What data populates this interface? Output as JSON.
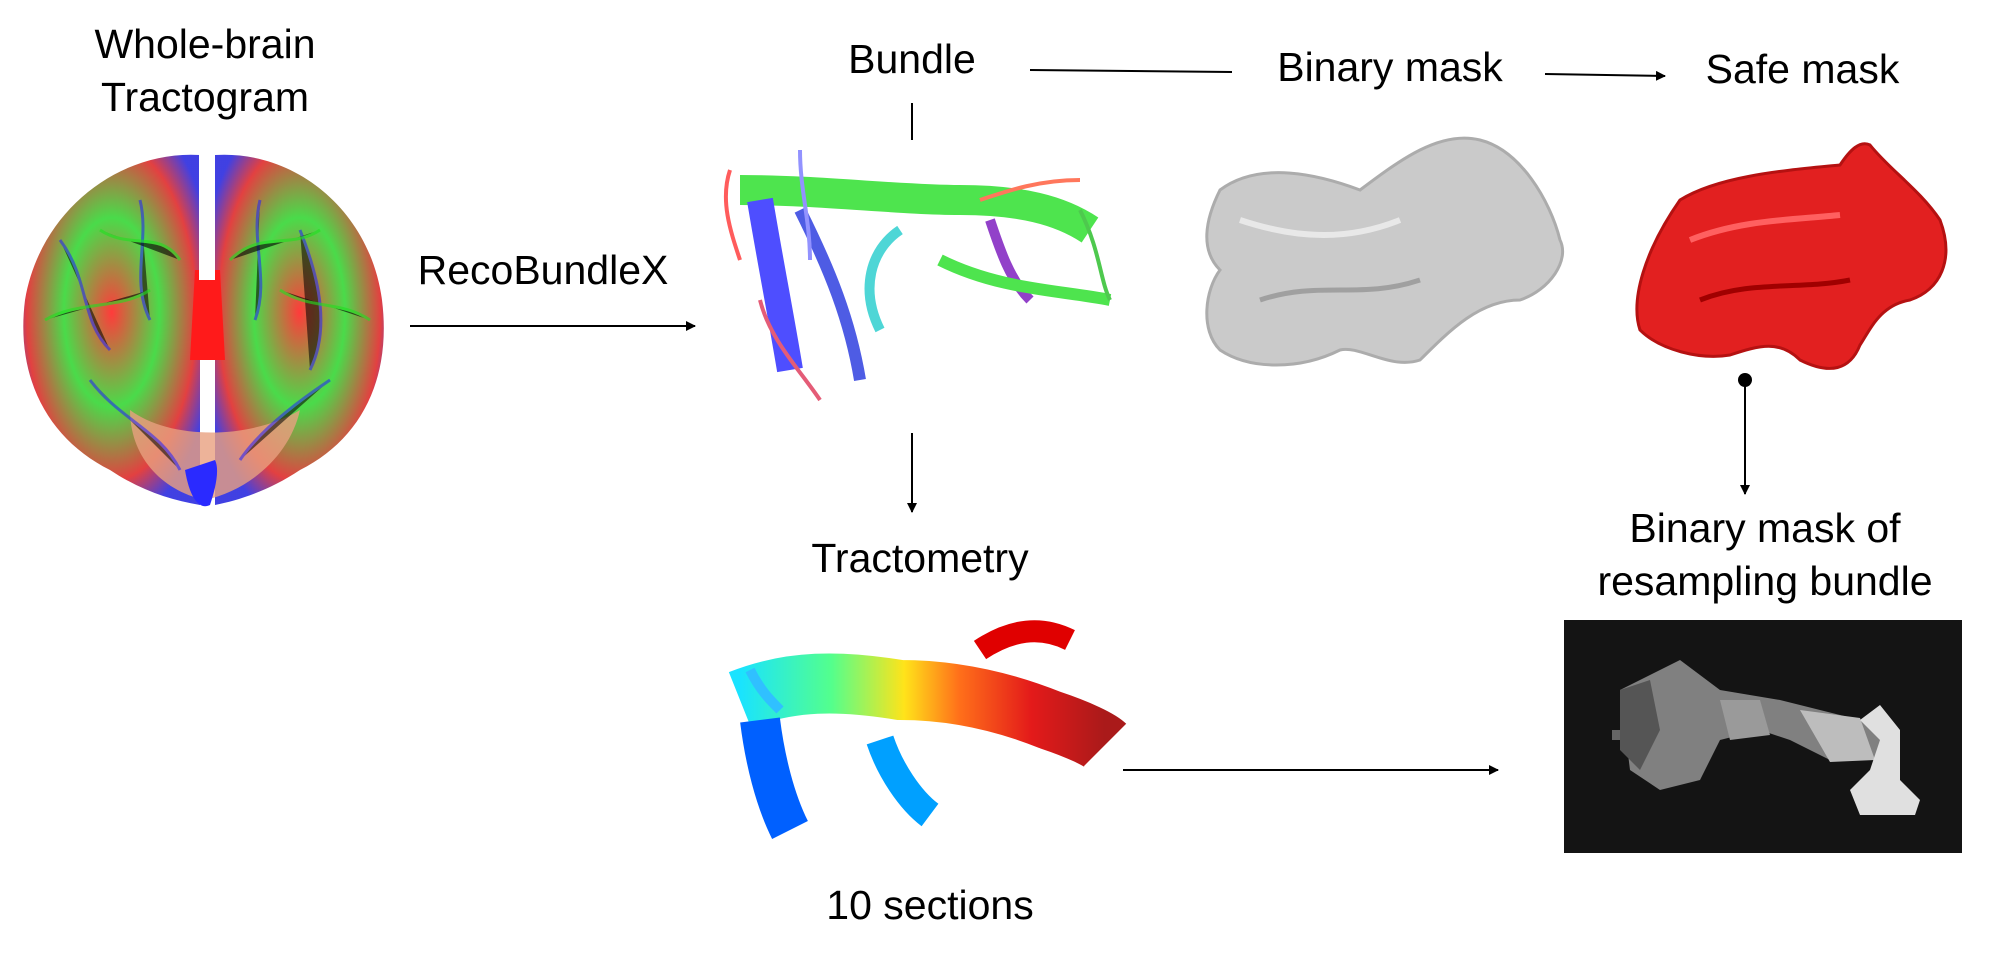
{
  "labels": {
    "whole_brain_line1": "Whole-brain",
    "whole_brain_line2": "Tractogram",
    "recobundlex": "RecoBundleX",
    "bundle": "Bundle",
    "binary_mask": "Binary mask",
    "safe_mask": "Safe mask",
    "tractometry": "Tractometry",
    "sections": "10 sections",
    "resampling_line1": "Binary mask of",
    "resampling_line2": "resampling bundle"
  },
  "colors": {
    "fiber_red": "#ff2020",
    "fiber_green": "#30e030",
    "fiber_blue": "#2020ff",
    "mask_gray": "#c8c8c8",
    "safe_red": "#e01010",
    "panel_bg": "#141414",
    "arrow": "#000000"
  }
}
